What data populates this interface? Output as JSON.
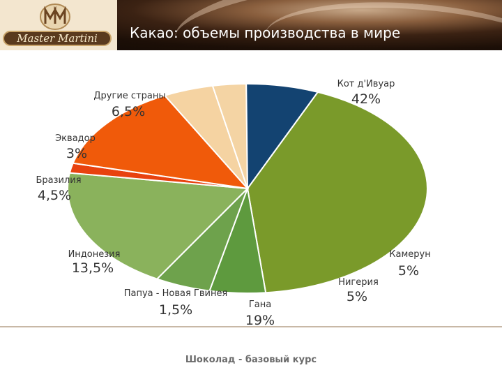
{
  "header": {
    "logo_text": "Master Martini",
    "title": "Какао: объемы производства в мире"
  },
  "footer": {
    "text": "Шоколад - базовый курс"
  },
  "chart_data": {
    "type": "pie",
    "title": "Какао: объемы производства в мире",
    "slices": [
      {
        "name": "Кот д'Ивуар",
        "pct_label": "42%",
        "value": 42,
        "color": "#7a9a2a"
      },
      {
        "name": "Камерун",
        "pct_label": "5%",
        "value": 5,
        "color": "#5e9a3e"
      },
      {
        "name": "Нигерия",
        "pct_label": "5%",
        "value": 5,
        "color": "#6ea24c"
      },
      {
        "name": "Гана",
        "pct_label": "19%",
        "value": 19,
        "color": "#8ab25c"
      },
      {
        "name": "Папуа - Новая Гвинея",
        "pct_label": "1,5%",
        "value": 1.5,
        "color": "#e8420f"
      },
      {
        "name": "Индонезия",
        "pct_label": "13,5%",
        "value": 13.5,
        "color": "#f05a0a"
      },
      {
        "name": "Бразилия",
        "pct_label": "4,5%",
        "value": 4.5,
        "color": "#f5d3a2"
      },
      {
        "name": "Эквадор",
        "pct_label": "3%",
        "value": 3,
        "color": "#f4d4a4"
      },
      {
        "name": "Другие страны",
        "pct_label": "6,5%",
        "value": 6.5,
        "color": "#134371"
      }
    ]
  }
}
